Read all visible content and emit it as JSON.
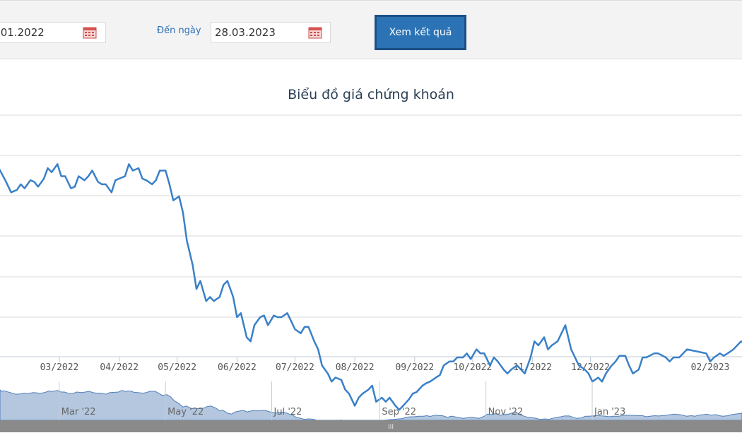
{
  "filter": {
    "from_date": ".01.2022",
    "to_label": "Đến ngày",
    "to_date": "28.03.2023",
    "submit_label": "Xem kết quả"
  },
  "chart_data": {
    "type": "line",
    "title": "Biểu đồ giá chứng khoán",
    "x_ticks": [
      "03/2022",
      "04/2022",
      "05/2022",
      "06/2022",
      "07/2022",
      "08/2022",
      "09/2022",
      "10/2022",
      "11/2022",
      "12/2022",
      "02/2023"
    ],
    "navigator_ticks": [
      "Mar '22",
      "May '22",
      "Jul '22",
      "Sep '22",
      "Nov '22",
      "Jan '23"
    ],
    "navigator_handle": "III",
    "line_color": "#3a80c8",
    "grid": true,
    "series": [
      {
        "points": [
          [
            "2022-01-26",
            1.45
          ],
          [
            "2022-01-27",
            1.3
          ],
          [
            "2022-01-28",
            1.38
          ],
          [
            "2022-02-01",
            1.2
          ],
          [
            "2022-02-04",
            1.05
          ],
          [
            "2022-02-07",
            1.08
          ],
          [
            "2022-02-09",
            1.15
          ],
          [
            "2022-02-11",
            1.1
          ],
          [
            "2022-02-14",
            1.2
          ],
          [
            "2022-02-16",
            1.18
          ],
          [
            "2022-02-18",
            1.12
          ],
          [
            "2022-02-21",
            1.22
          ],
          [
            "2022-02-23",
            1.35
          ],
          [
            "2022-02-25",
            1.3
          ],
          [
            "2022-02-28",
            1.4
          ],
          [
            "2022-03-02",
            1.25
          ],
          [
            "2022-03-04",
            1.25
          ],
          [
            "2022-03-07",
            1.1
          ],
          [
            "2022-03-09",
            1.12
          ],
          [
            "2022-03-11",
            1.25
          ],
          [
            "2022-03-14",
            1.2
          ],
          [
            "2022-03-16",
            1.25
          ],
          [
            "2022-03-18",
            1.32
          ],
          [
            "2022-03-21",
            1.18
          ],
          [
            "2022-03-23",
            1.15
          ],
          [
            "2022-03-25",
            1.15
          ],
          [
            "2022-03-28",
            1.05
          ],
          [
            "2022-03-30",
            1.2
          ],
          [
            "2022-04-01",
            1.22
          ],
          [
            "2022-04-04",
            1.25
          ],
          [
            "2022-04-06",
            1.4
          ],
          [
            "2022-04-08",
            1.32
          ],
          [
            "2022-04-11",
            1.35
          ],
          [
            "2022-04-13",
            1.22
          ],
          [
            "2022-04-15",
            1.2
          ],
          [
            "2022-04-18",
            1.15
          ],
          [
            "2022-04-20",
            1.2
          ],
          [
            "2022-04-22",
            1.32
          ],
          [
            "2022-04-25",
            1.32
          ],
          [
            "2022-04-27",
            1.15
          ],
          [
            "2022-04-29",
            0.95
          ],
          [
            "2022-05-02",
            1.0
          ],
          [
            "2022-05-04",
            0.8
          ],
          [
            "2022-05-06",
            0.45
          ],
          [
            "2022-05-09",
            0.15
          ],
          [
            "2022-05-11",
            -0.15
          ],
          [
            "2022-05-13",
            -0.05
          ],
          [
            "2022-05-16",
            -0.3
          ],
          [
            "2022-05-18",
            -0.25
          ],
          [
            "2022-05-20",
            -0.3
          ],
          [
            "2022-05-23",
            -0.25
          ],
          [
            "2022-05-25",
            -0.1
          ],
          [
            "2022-05-27",
            -0.05
          ],
          [
            "2022-05-30",
            -0.25
          ],
          [
            "2022-06-01",
            -0.5
          ],
          [
            "2022-06-03",
            -0.45
          ],
          [
            "2022-06-06",
            -0.75
          ],
          [
            "2022-06-08",
            -0.8
          ],
          [
            "2022-06-10",
            -0.6
          ],
          [
            "2022-06-13",
            -0.5
          ],
          [
            "2022-06-15",
            -0.48
          ],
          [
            "2022-06-17",
            -0.6
          ],
          [
            "2022-06-20",
            -0.48
          ],
          [
            "2022-06-22",
            -0.5
          ],
          [
            "2022-06-24",
            -0.5
          ],
          [
            "2022-06-27",
            -0.45
          ],
          [
            "2022-06-29",
            -0.55
          ],
          [
            "2022-07-01",
            -0.65
          ],
          [
            "2022-07-04",
            -0.7
          ],
          [
            "2022-07-06",
            -0.62
          ],
          [
            "2022-07-08",
            -0.62
          ],
          [
            "2022-07-11",
            -0.8
          ],
          [
            "2022-07-13",
            -0.9
          ],
          [
            "2022-07-15",
            -1.1
          ],
          [
            "2022-07-18",
            -1.2
          ],
          [
            "2022-07-20",
            -1.3
          ],
          [
            "2022-07-22",
            -1.25
          ],
          [
            "2022-07-25",
            -1.28
          ],
          [
            "2022-07-27",
            -1.4
          ],
          [
            "2022-07-29",
            -1.45
          ],
          [
            "2022-08-01",
            -1.6
          ],
          [
            "2022-08-03",
            -1.5
          ],
          [
            "2022-08-05",
            -1.45
          ],
          [
            "2022-08-08",
            -1.4
          ],
          [
            "2022-08-10",
            -1.35
          ],
          [
            "2022-08-12",
            -1.55
          ],
          [
            "2022-08-15",
            -1.5
          ],
          [
            "2022-08-17",
            -1.55
          ],
          [
            "2022-08-19",
            -1.5
          ],
          [
            "2022-08-22",
            -1.6
          ],
          [
            "2022-08-24",
            -1.65
          ],
          [
            "2022-08-26",
            -1.6
          ],
          [
            "2022-08-29",
            -1.52
          ],
          [
            "2022-08-31",
            -1.45
          ],
          [
            "2022-09-02",
            -1.43
          ],
          [
            "2022-09-05",
            -1.35
          ],
          [
            "2022-09-07",
            -1.32
          ],
          [
            "2022-09-09",
            -1.3
          ],
          [
            "2022-09-12",
            -1.25
          ],
          [
            "2022-09-14",
            -1.22
          ],
          [
            "2022-09-16",
            -1.1
          ],
          [
            "2022-09-19",
            -1.05
          ],
          [
            "2022-09-21",
            -1.05
          ],
          [
            "2022-09-23",
            -1.0
          ],
          [
            "2022-09-26",
            -1.0
          ],
          [
            "2022-09-28",
            -0.95
          ],
          [
            "2022-09-30",
            -1.02
          ],
          [
            "2022-10-03",
            -0.9
          ],
          [
            "2022-10-05",
            -0.95
          ],
          [
            "2022-10-07",
            -0.95
          ],
          [
            "2022-10-10",
            -1.1
          ],
          [
            "2022-10-12",
            -1.0
          ],
          [
            "2022-10-14",
            -1.05
          ],
          [
            "2022-10-17",
            -1.15
          ],
          [
            "2022-10-19",
            -1.2
          ],
          [
            "2022-10-21",
            -1.15
          ],
          [
            "2022-10-24",
            -1.1
          ],
          [
            "2022-10-26",
            -1.15
          ],
          [
            "2022-10-28",
            -1.2
          ],
          [
            "2022-10-31",
            -1.0
          ],
          [
            "2022-11-02",
            -0.8
          ],
          [
            "2022-11-04",
            -0.85
          ],
          [
            "2022-11-07",
            -0.75
          ],
          [
            "2022-11-09",
            -0.9
          ],
          [
            "2022-11-11",
            -0.85
          ],
          [
            "2022-11-14",
            -0.8
          ],
          [
            "2022-11-16",
            -0.7
          ],
          [
            "2022-11-18",
            -0.6
          ],
          [
            "2022-11-21",
            -0.9
          ],
          [
            "2022-11-23",
            -1.0
          ],
          [
            "2022-11-25",
            -1.1
          ],
          [
            "2022-11-28",
            -1.15
          ],
          [
            "2022-11-30",
            -1.2
          ],
          [
            "2022-12-02",
            -1.3
          ],
          [
            "2022-12-05",
            -1.25
          ],
          [
            "2022-12-07",
            -1.3
          ],
          [
            "2022-12-09",
            -1.2
          ],
          [
            "2022-12-12",
            -1.1
          ],
          [
            "2022-12-14",
            -1.05
          ],
          [
            "2022-12-16",
            -0.98
          ],
          [
            "2022-12-19",
            -0.98
          ],
          [
            "2022-12-21",
            -1.1
          ],
          [
            "2022-12-23",
            -1.2
          ],
          [
            "2022-12-26",
            -1.15
          ],
          [
            "2022-12-28",
            -1.0
          ],
          [
            "2022-12-30",
            -1.0
          ],
          [
            "2023-01-03",
            -0.95
          ],
          [
            "2023-01-05",
            -0.95
          ],
          [
            "2023-01-09",
            -1.0
          ],
          [
            "2023-01-11",
            -1.05
          ],
          [
            "2023-01-13",
            -1.0
          ],
          [
            "2023-01-16",
            -1.0
          ],
          [
            "2023-01-18",
            -0.95
          ],
          [
            "2023-01-20",
            -0.9
          ],
          [
            "2023-01-30",
            -0.95
          ],
          [
            "2023-02-01",
            -1.05
          ],
          [
            "2023-02-03",
            -1.0
          ],
          [
            "2023-02-06",
            -0.95
          ],
          [
            "2023-02-08",
            -0.98
          ],
          [
            "2023-02-10",
            -0.95
          ],
          [
            "2023-02-13",
            -0.9
          ],
          [
            "2023-02-15",
            -0.85
          ],
          [
            "2023-02-17",
            -0.8
          ],
          [
            "2023-02-20",
            -0.85
          ],
          [
            "2023-02-22",
            -0.9
          ],
          [
            "2023-02-24",
            -1.0
          ],
          [
            "2023-02-27",
            -0.95
          ],
          [
            "2023-03-01",
            -1.0
          ],
          [
            "2023-03-03",
            -0.9
          ],
          [
            "2023-03-06",
            -0.85
          ],
          [
            "2023-03-08",
            -0.8
          ],
          [
            "2023-03-10",
            -0.9
          ],
          [
            "2023-03-13",
            -0.85
          ],
          [
            "2023-03-15",
            -0.95
          ],
          [
            "2023-03-17",
            -1.0
          ],
          [
            "2023-03-20",
            -0.95
          ],
          [
            "2023-03-22",
            -0.85
          ],
          [
            "2023-03-24",
            -0.8
          ],
          [
            "2023-03-27",
            -0.75
          ],
          [
            "2023-03-28",
            -0.7
          ]
        ]
      }
    ]
  }
}
